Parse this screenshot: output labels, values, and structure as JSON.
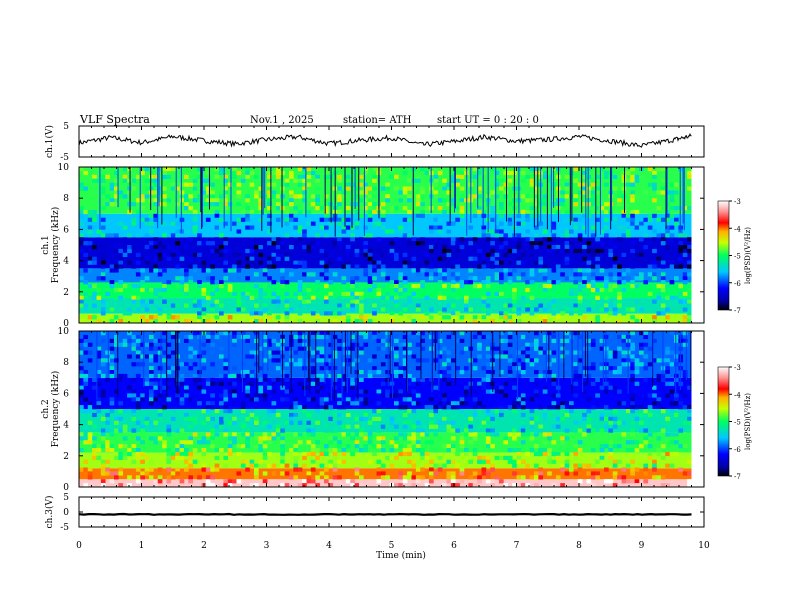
{
  "header": {
    "title": "VLF  Spectra",
    "date": "Nov.1  , 2025",
    "station": "station= ATH",
    "start": "start  UT  =    0  : 20 : 0"
  },
  "chart_data": {
    "type": "spectrogram",
    "title": "VLF  Spectra",
    "xlabel": "Time  (min)",
    "xlim": [
      0,
      10
    ],
    "x_ticks": [
      "0",
      "1",
      "2",
      "3",
      "4",
      "5",
      "6",
      "7",
      "8",
      "9",
      "10"
    ],
    "data_end_min": 9.8,
    "panels": [
      {
        "id": "ch1-waveform",
        "ylabel": "ch.1(V)",
        "ylim": [
          -5,
          5
        ],
        "y_ticks": [
          "5",
          "-5"
        ],
        "kind": "waveform",
        "series": [
          {
            "t": 0.0,
            "v": -0.5
          },
          {
            "t": 0.5,
            "v": 1.3
          },
          {
            "t": 1.0,
            "v": -0.4
          },
          {
            "t": 1.5,
            "v": 1.6
          },
          {
            "t": 2.0,
            "v": 0.3
          },
          {
            "t": 2.5,
            "v": -0.8
          },
          {
            "t": 3.0,
            "v": 0.6
          },
          {
            "t": 3.5,
            "v": 1.5
          },
          {
            "t": 4.0,
            "v": -0.7
          },
          {
            "t": 4.5,
            "v": 0.4
          },
          {
            "t": 5.0,
            "v": 1.2
          },
          {
            "t": 5.5,
            "v": -1.1
          },
          {
            "t": 6.0,
            "v": 0.0
          },
          {
            "t": 6.5,
            "v": 1.5
          },
          {
            "t": 7.0,
            "v": 0.1
          },
          {
            "t": 7.5,
            "v": 0.6
          },
          {
            "t": 8.0,
            "v": 1.6
          },
          {
            "t": 8.5,
            "v": 0.2
          },
          {
            "t": 9.0,
            "v": -1.4
          },
          {
            "t": 9.5,
            "v": 0.5
          },
          {
            "t": 9.8,
            "v": 1.8
          }
        ]
      },
      {
        "id": "ch1-spectrogram",
        "ylabel": "ch.1\nFrequency  (kHz)",
        "ylim": [
          0,
          10
        ],
        "y_ticks": [
          "0",
          "2",
          "4",
          "6",
          "8",
          "10"
        ],
        "kind": "spectrogram",
        "bands": [
          {
            "f": [
              0.0,
              0.6
            ],
            "level": -4.6
          },
          {
            "f": [
              0.6,
              1.6
            ],
            "level": -5.3
          },
          {
            "f": [
              1.6,
              2.6
            ],
            "level": -5.0
          },
          {
            "f": [
              2.6,
              3.5
            ],
            "level": -5.8
          },
          {
            "f": [
              3.5,
              5.5
            ],
            "level": -6.4
          },
          {
            "f": [
              5.5,
              7.0
            ],
            "level": -5.6
          },
          {
            "f": [
              7.0,
              10.0
            ],
            "level": -4.9
          }
        ],
        "colorbar": {
          "label": "log(PSD)(V²/Hz)",
          "range": [
            -7,
            -3
          ],
          "ticks": [
            "-3",
            "-4",
            "-5",
            "-6",
            "-7"
          ]
        }
      },
      {
        "id": "ch2-spectrogram",
        "ylabel": "ch.2\nFrequency  (kHz)",
        "ylim": [
          0,
          10
        ],
        "y_ticks": [
          "0",
          "2",
          "4",
          "6",
          "8",
          "10"
        ],
        "kind": "spectrogram",
        "bands": [
          {
            "f": [
              0.0,
              0.5
            ],
            "level": -3.2
          },
          {
            "f": [
              0.5,
              1.2
            ],
            "level": -4.0
          },
          {
            "f": [
              1.2,
              2.2
            ],
            "level": -4.6
          },
          {
            "f": [
              2.2,
              3.5
            ],
            "level": -4.9
          },
          {
            "f": [
              3.5,
              5.0
            ],
            "level": -5.3
          },
          {
            "f": [
              5.0,
              7.0
            ],
            "level": -6.2
          },
          {
            "f": [
              7.0,
              10.0
            ],
            "level": -5.9
          }
        ],
        "colorbar": {
          "label": "log(PSD)(V²/Hz)",
          "range": [
            -7,
            -3
          ],
          "ticks": [
            "-3",
            "-4",
            "-5",
            "-6",
            "-7"
          ]
        }
      },
      {
        "id": "ch3-waveform",
        "ylabel": "ch.3(V)",
        "ylim": [
          -5,
          5
        ],
        "y_ticks": [
          "5",
          "0",
          "-5"
        ],
        "kind": "waveform",
        "series": [
          {
            "t": 0.0,
            "v": -0.8
          },
          {
            "t": 2.0,
            "v": -0.8
          },
          {
            "t": 4.0,
            "v": -0.8
          },
          {
            "t": 6.0,
            "v": -0.8
          },
          {
            "t": 8.0,
            "v": -0.8
          },
          {
            "t": 9.8,
            "v": -0.8
          }
        ]
      }
    ]
  }
}
